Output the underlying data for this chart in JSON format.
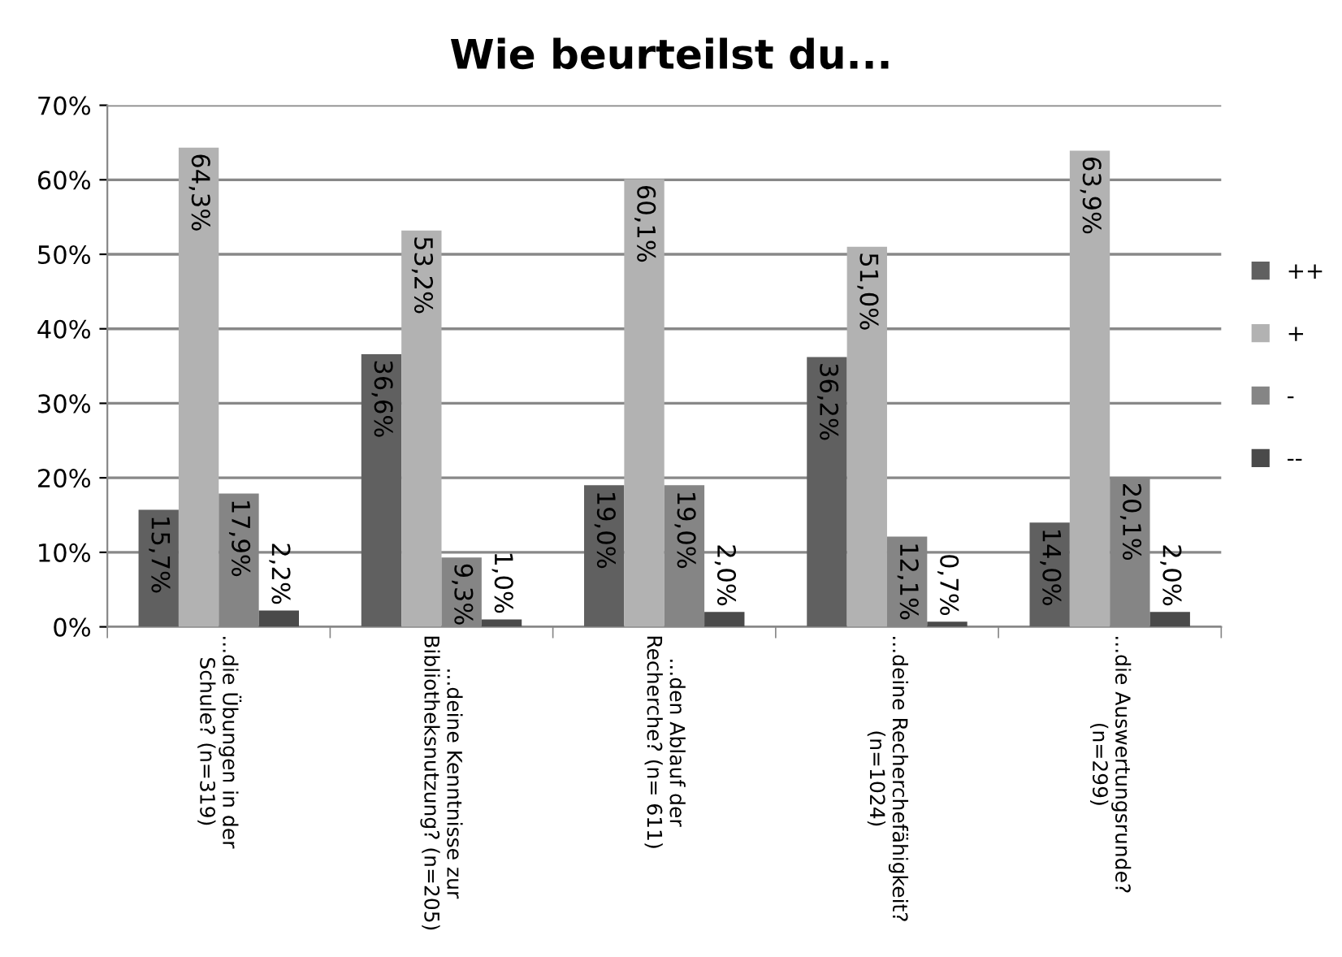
{
  "chart_data": {
    "type": "bar",
    "title": "Wie beurteilst du...",
    "categories": [
      "...die Übungen in der\nSchule? (n=319)",
      "...deine Kenntnisse zur\nBibliotheksnutzung? (n=205)",
      "...den Ablauf der\nRecherche? (n= 611)",
      "...deine Recherchefähigkeit?\n(n=1024)",
      "...die Auswertungsrunde?\n(n=299)"
    ],
    "series": [
      {
        "name": "++",
        "color": "#606060",
        "values": [
          15.7,
          36.6,
          19.0,
          36.2,
          14.0
        ],
        "value_labels": [
          "15,7%",
          "36,6%",
          "19,0%",
          "36,2%",
          "14,0%"
        ]
      },
      {
        "name": "+",
        "color": "#b2b2b2",
        "values": [
          64.3,
          53.2,
          60.1,
          51.0,
          63.9
        ],
        "value_labels": [
          "64,3%",
          "53,2%",
          "60,1%",
          "51,0%",
          "63,9%"
        ]
      },
      {
        "name": "-",
        "color": "#858585",
        "values": [
          17.9,
          9.3,
          19.0,
          12.1,
          20.1
        ],
        "value_labels": [
          "17,9%",
          "9,3%",
          "19,0%",
          "12,1%",
          "20,1%"
        ]
      },
      {
        "name": "--",
        "color": "#4a4a4a",
        "values": [
          2.2,
          1.0,
          2.0,
          0.7,
          2.0
        ],
        "value_labels": [
          "2,2%",
          "1,0%",
          "2,0%",
          "0,7%",
          "2,0%"
        ]
      }
    ],
    "ylim": [
      0,
      70
    ],
    "yticks": [
      {
        "value": 0,
        "label": "0%"
      },
      {
        "value": 10,
        "label": "10%"
      },
      {
        "value": 20,
        "label": "20%"
      },
      {
        "value": 30,
        "label": "30%"
      },
      {
        "value": 40,
        "label": "40%"
      },
      {
        "value": 50,
        "label": "50%"
      },
      {
        "value": 60,
        "label": "60%"
      },
      {
        "value": 70,
        "label": "70%"
      }
    ],
    "grid": "y",
    "legend": "right"
  }
}
